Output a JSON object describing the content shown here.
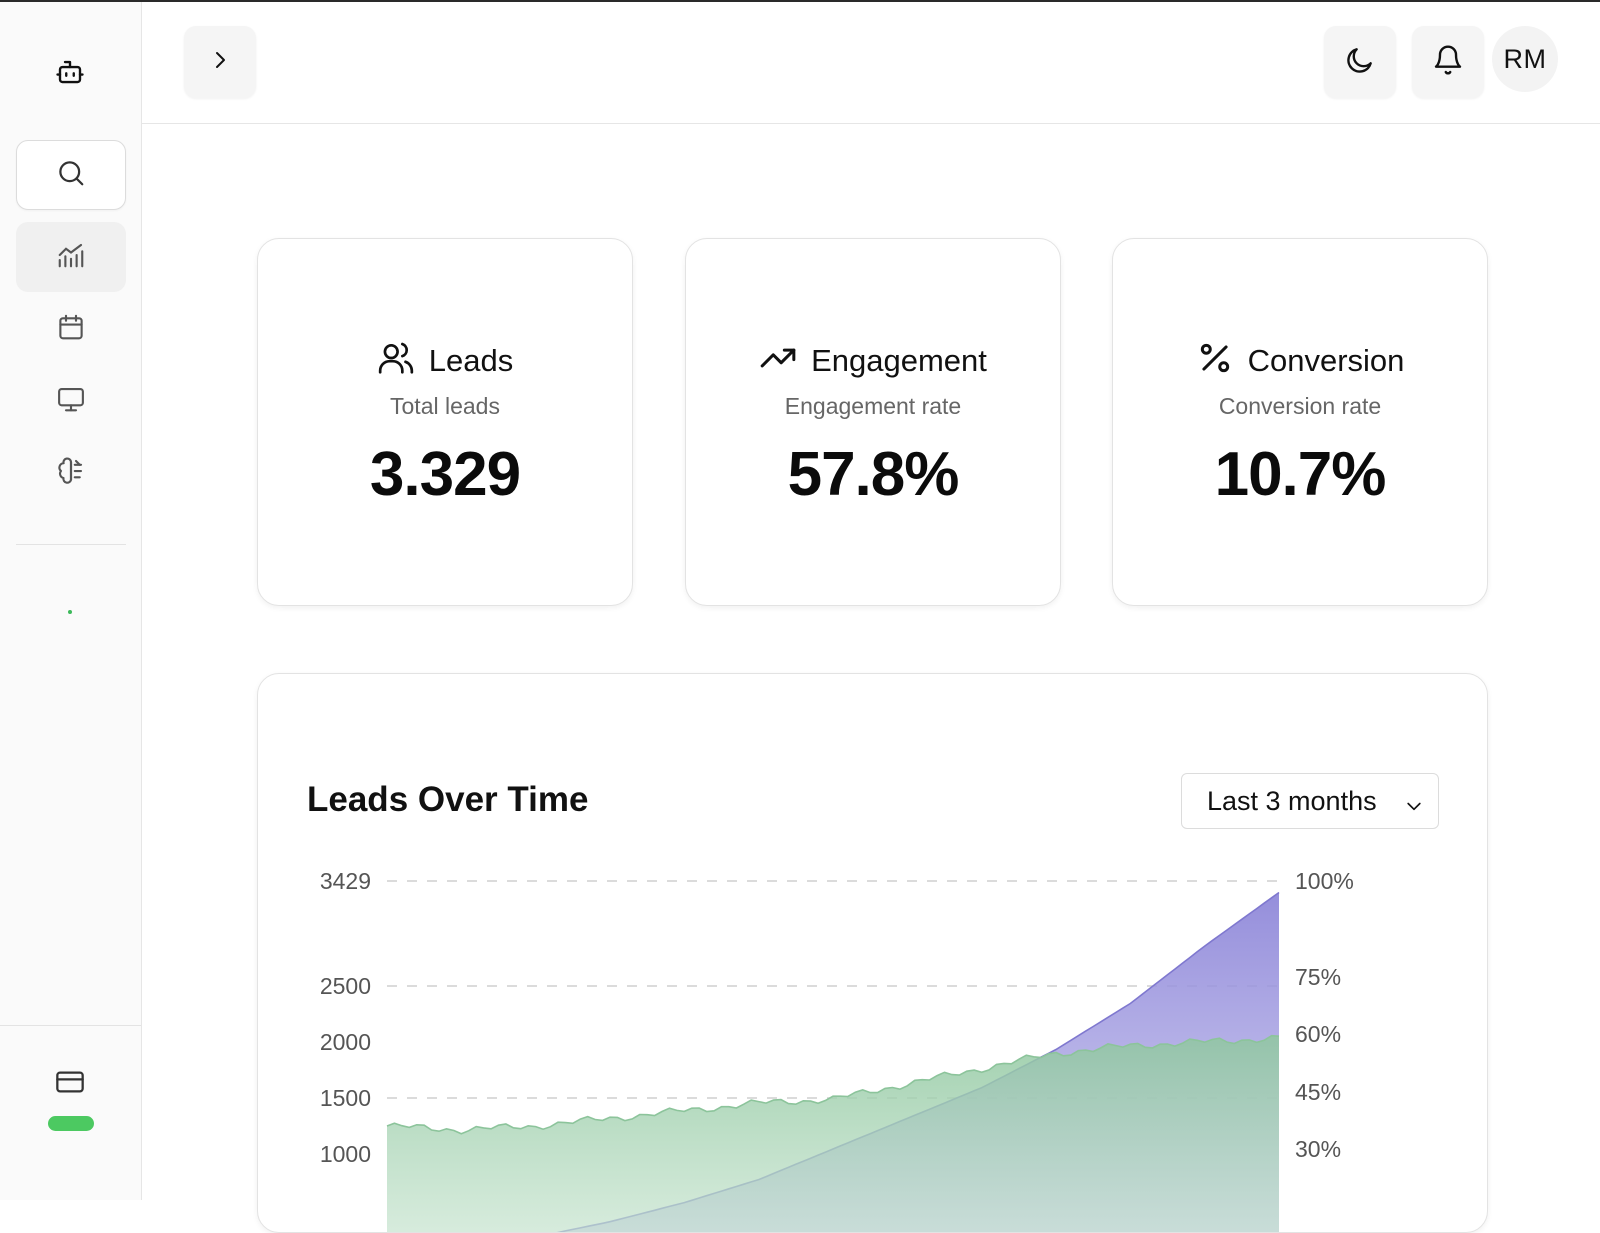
{
  "sidebar": {
    "logo_icon": "robot-icon",
    "search_icon": "search-icon",
    "items": [
      {
        "icon": "analytics-chart-icon",
        "active": true
      },
      {
        "icon": "calendar-icon",
        "active": false
      },
      {
        "icon": "monitor-icon",
        "active": false
      },
      {
        "icon": "brain-icon",
        "active": false
      }
    ],
    "bottom_icon": "credit-card-icon",
    "status_color": "#4cc961"
  },
  "header": {
    "expand_icon": "chevron-right-icon",
    "theme_icon": "moon-icon",
    "notification_icon": "bell-icon",
    "avatar_initials": "RM"
  },
  "stats": [
    {
      "icon": "users-icon",
      "title": "Leads",
      "subtitle": "Total leads",
      "value": "3.329"
    },
    {
      "icon": "trending-up-icon",
      "title": "Engagement",
      "subtitle": "Engagement rate",
      "value": "57.8%"
    },
    {
      "icon": "percent-icon",
      "title": "Conversion",
      "subtitle": "Conversion rate",
      "value": "10.7%"
    }
  ],
  "chart": {
    "title": "Leads Over Time",
    "range_select": {
      "selected": "Last 3 months"
    }
  },
  "chart_data": {
    "type": "area",
    "title": "Leads Over Time",
    "xlabel": "",
    "ylabel": "",
    "y_left_ticks": [
      "3429",
      "2500",
      "2000",
      "1500",
      "1000"
    ],
    "y_right_ticks": [
      "100%",
      "75%",
      "60%",
      "45%",
      "30%"
    ],
    "ylim_left": [
      0,
      3429
    ],
    "ylim_right": [
      0,
      100
    ],
    "grid": "dashed horizontal",
    "legend": "none",
    "x_points": 13,
    "series": [
      {
        "axis": "right",
        "color": "#9a94dc",
        "values": [
          1,
          3,
          7,
          11,
          16,
          22,
          30,
          38,
          46,
          56,
          68,
          83,
          97
        ]
      },
      {
        "axis": "right",
        "color": "#9dcdab",
        "values": [
          36,
          35,
          36,
          38,
          40,
          42,
          43,
          47,
          51,
          55,
          57,
          58,
          59
        ]
      }
    ]
  }
}
